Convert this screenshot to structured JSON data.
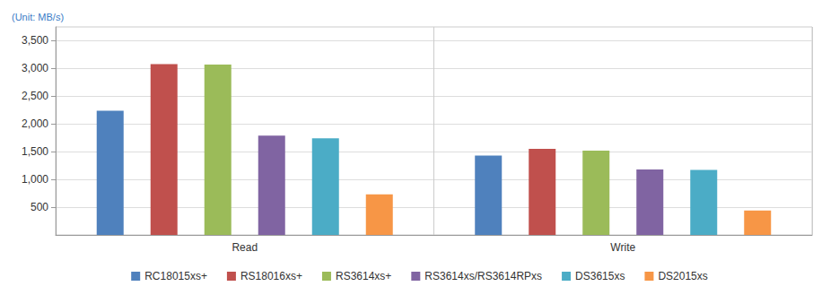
{
  "chart_data": {
    "type": "bar",
    "y_label": "(Unit: MB/s)",
    "categories": [
      "Read",
      "Write"
    ],
    "series": [
      {
        "name": "RC18015xs+",
        "color": "#4f81bd",
        "values": [
          2240,
          1430
        ]
      },
      {
        "name": "RS18016xs+",
        "color": "#c0504d",
        "values": [
          3080,
          1550
        ]
      },
      {
        "name": "RS3614xs+",
        "color": "#9bbb59",
        "values": [
          3070,
          1520
        ]
      },
      {
        "name": "RS3614xs/RS3614RPxs",
        "color": "#8064a2",
        "values": [
          1790,
          1180
        ]
      },
      {
        "name": "DS3615xs",
        "color": "#4bacc6",
        "values": [
          1740,
          1170
        ]
      },
      {
        "name": "DS2015xs",
        "color": "#f79646",
        "values": [
          730,
          440
        ]
      }
    ],
    "ylim": [
      0,
      3750
    ],
    "yticks": [
      500,
      1000,
      1500,
      2000,
      2500,
      3000,
      3500
    ],
    "grid": true,
    "legend": "bottom"
  }
}
